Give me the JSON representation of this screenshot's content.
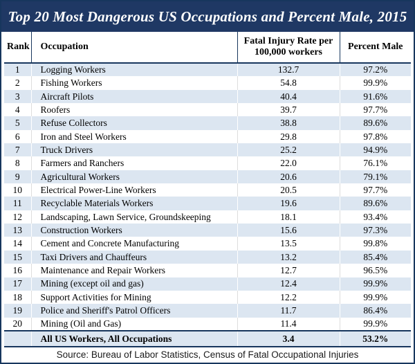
{
  "title": "Top 20 Most Dangerous US Occupations and Percent Male, 2015",
  "header": {
    "rank": "Rank",
    "occupation": "Occupation",
    "rate": "Fatal Injury Rate per 100,000 workers",
    "percent": "Percent Male"
  },
  "chart_data": {
    "type": "table",
    "title": "Top 20 Most Dangerous US Occupations and Percent Male, 2015",
    "columns": [
      "Rank",
      "Occupation",
      "Fatal Injury Rate per 100,000 workers",
      "Percent Male"
    ],
    "rows": [
      [
        "1",
        "Logging Workers",
        "132.7",
        "97.2%"
      ],
      [
        "2",
        "Fishing Workers",
        "54.8",
        "99.9%"
      ],
      [
        "3",
        "Aircraft Pilots",
        "40.4",
        "91.6%"
      ],
      [
        "4",
        "Roofers",
        "39.7",
        "97.7%"
      ],
      [
        "5",
        "Refuse Collectors",
        "38.8",
        "89.6%"
      ],
      [
        "6",
        "Iron and Steel Workers",
        "29.8",
        "97.8%"
      ],
      [
        "7",
        "Truck Drivers",
        "25.2",
        "94.9%"
      ],
      [
        "8",
        "Farmers and Ranchers",
        "22.0",
        "76.1%"
      ],
      [
        "9",
        "Agricultural Workers",
        "20.6",
        "79.1%"
      ],
      [
        "10",
        "Electrical Power-Line Workers",
        "20.5",
        "97.7%"
      ],
      [
        "11",
        "Recyclable Materials Workers",
        "19.6",
        "89.6%"
      ],
      [
        "12",
        "Landscaping, Lawn Service, Groundskeeping",
        "18.1",
        "93.4%"
      ],
      [
        "13",
        "Construction Workers",
        "15.6",
        "97.3%"
      ],
      [
        "14",
        "Cement and Concrete Manufacturing",
        "13.5",
        "99.8%"
      ],
      [
        "15",
        "Taxi Drivers and Chauffeurs",
        "13.2",
        "85.4%"
      ],
      [
        "16",
        "Maintenance and Repair Workers",
        "12.7",
        "96.5%"
      ],
      [
        "17",
        "Mining (except oil and gas)",
        "12.4",
        "99.9%"
      ],
      [
        "18",
        "Support Activities for Mining",
        "12.2",
        "99.9%"
      ],
      [
        "19",
        "Police and Sheriff's Patrol Officers",
        "11.7",
        "86.4%"
      ],
      [
        "20",
        "Mining (Oil and Gas)",
        "11.4",
        "99.9%"
      ]
    ],
    "total_row": {
      "rank": "",
      "label": "All US Workers, All Occupations",
      "rate": "3.4",
      "percent": "53.2%"
    },
    "source": "Source: Bureau of Labor Statistics, Census of Fatal Occupational Injuries"
  },
  "colors": {
    "navy": "#1f3864",
    "row-alt": "#dce6f1",
    "border-dark": "#17365d",
    "title-text": "#ffffff"
  }
}
